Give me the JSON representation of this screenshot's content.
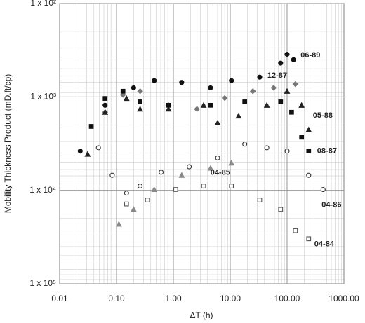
{
  "chart_data": {
    "type": "scatter",
    "x_label": "ΔT (h)",
    "y_label": "Mobility Thickness Product (mD.ft/cp)",
    "x_log": true,
    "y_log": true,
    "grid": true,
    "xlim": [
      0.01,
      1000
    ],
    "ylim": [
      100000,
      100
    ],
    "xticks": [
      0.01,
      {
        "value": 0.1,
        "label": "0.10"
      },
      {
        "value": 1,
        "label": "1.00"
      },
      {
        "value": 10,
        "label": "10.00"
      },
      {
        "value": 100,
        "label": "100.00"
      },
      {
        "value": 1000,
        "label": "1000.00"
      }
    ],
    "yticks": [
      {
        "value": 100,
        "label": "1 x 10²"
      },
      {
        "value": 1000,
        "label": "1 x 10³"
      },
      {
        "value": 10000,
        "label": "1 x 10⁴"
      },
      {
        "value": 100000,
        "label": "1 x 10⁵"
      }
    ],
    "series": [
      {
        "name": "06-89",
        "color": "#111111",
        "marker": "circle",
        "filled": true,
        "x": [
          0.023,
          0.063,
          0.2,
          0.46,
          1.4,
          4.5,
          10.5,
          33,
          77,
          100,
          130
        ],
        "values": [
          3800,
          1230,
          800,
          670,
          700,
          800,
          670,
          615,
          435,
          350,
          400
        ]
      },
      {
        "name": "12-87",
        "color": "#777777",
        "marker": "diamond",
        "filled": true,
        "x": [
          0.063,
          0.13,
          0.26,
          0.82,
          2.6,
          8,
          25,
          58,
          140
        ],
        "values": [
          1460,
          950,
          870,
          1230,
          1350,
          1030,
          870,
          800,
          730
        ]
      },
      {
        "name": "05-88",
        "color": "#222222",
        "marker": "triangle",
        "filled": true,
        "x": [
          0.031,
          0.063,
          0.15,
          0.26,
          0.82,
          3.4,
          6,
          14,
          44,
          100,
          180,
          240
        ],
        "values": [
          4100,
          1460,
          1040,
          1350,
          1350,
          1230,
          1900,
          1600,
          1230,
          870,
          1230,
          2250
        ]
      },
      {
        "name": "08-87",
        "color": "#111111",
        "marker": "square",
        "filled": true,
        "x": [
          0.036,
          0.063,
          0.13,
          0.26,
          0.82,
          4.5,
          18,
          77,
          120,
          180,
          240
        ],
        "values": [
          2070,
          1040,
          870,
          1130,
          1230,
          1230,
          1130,
          1130,
          1460,
          2700,
          3800
        ]
      },
      {
        "name": "04-85",
        "color": "#888888",
        "marker": "triangle",
        "filled": true,
        "x": [
          0.11,
          0.2,
          0.46,
          1.4,
          4.5,
          10.5
        ],
        "values": [
          23000,
          16000,
          9800,
          6900,
          5800,
          5100
        ]
      },
      {
        "name": "04-86",
        "color": "#333333",
        "marker": "circle",
        "filled": false,
        "x": [
          0.048,
          0.084,
          0.15,
          0.26,
          0.61,
          1.9,
          6,
          18,
          44,
          100,
          240,
          430
        ],
        "values": [
          3500,
          6900,
          10700,
          9000,
          6400,
          5600,
          4500,
          3200,
          3500,
          3800,
          6900,
          9800
        ]
      },
      {
        "name": "04-84",
        "color": "#555555",
        "marker": "square",
        "filled": false,
        "x": [
          0.15,
          0.35,
          1.1,
          3.4,
          10.5,
          33,
          77,
          140,
          240
        ],
        "values": [
          14000,
          12700,
          9800,
          9000,
          9000,
          12700,
          16000,
          27000,
          33000
        ]
      }
    ]
  }
}
